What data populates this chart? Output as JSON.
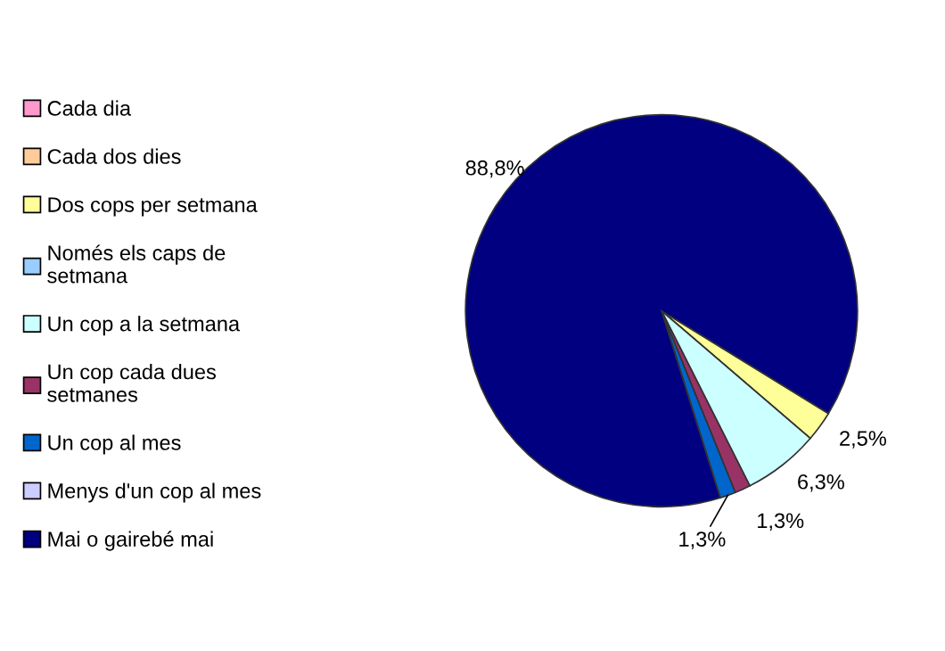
{
  "chart_data": {
    "type": "pie",
    "categories": [
      "Cada dia",
      "Cada dos dies",
      "Dos cops per setmana",
      "Només els caps de\nsetmana",
      "Un cop a la setmana",
      "Un cop cada dues\nsetmanes",
      "Un cop al mes",
      "Menys d'un cop al mes",
      "Mai o gairebé mai"
    ],
    "values": [
      0,
      0,
      2.5,
      0,
      6.3,
      1.3,
      1.3,
      0,
      88.8
    ],
    "value_labels": [
      null,
      null,
      "2,5%",
      null,
      "6,3%",
      "1,3%",
      "1,3%",
      null,
      "88,8%"
    ],
    "colors": [
      "#ff99cc",
      "#ffcc99",
      "#ffff99",
      "#99ccff",
      "#ccffff",
      "#993366",
      "#0066cc",
      "#ccccff",
      "#000080"
    ],
    "legend": "left"
  }
}
